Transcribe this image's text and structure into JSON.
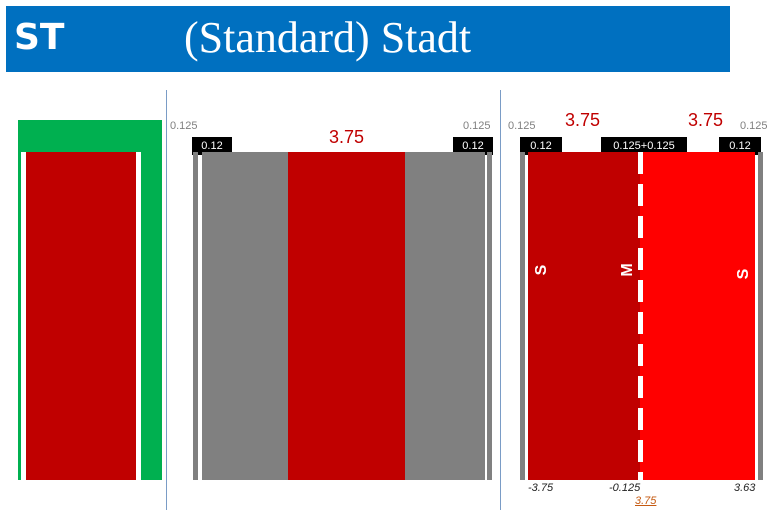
{
  "header": {
    "code": "ST",
    "title": "(Standard) Stadt",
    "background": "#0070c0"
  },
  "colors": {
    "lane_dark_red": "#c00000",
    "lane_bright_red": "#ff0000",
    "shoulder_gray": "#808080",
    "side_green": "#00b050"
  },
  "panel_middle": {
    "lane_width": "3.75",
    "edge_offset_left": "0.125",
    "edge_offset_right": "0.125",
    "marking_left": "0.12",
    "marking_right": "0.12"
  },
  "panel_right": {
    "edge_offset_left": "0.125",
    "edge_offset_right": "0.125",
    "lane_width_left": "3.75",
    "lane_width_right": "3.75",
    "marking_left": "0.12",
    "marking_center": "0.125+0.125",
    "marking_right": "0.12",
    "lane_left_letter": "S",
    "center_letter": "M",
    "lane_right_letter": "S",
    "coord_left": "-3.75",
    "coord_center": "-0.125",
    "coord_right": "3.63",
    "coord_total": "3.75"
  }
}
